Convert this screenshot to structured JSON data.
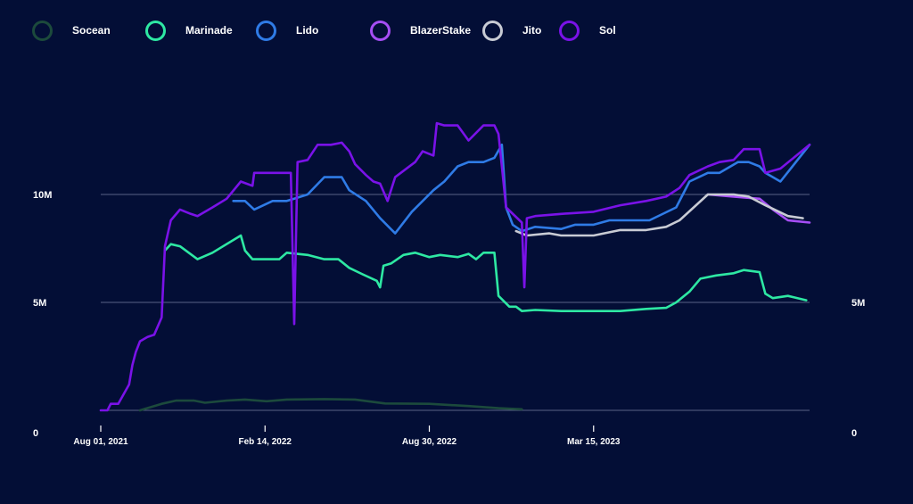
{
  "chart_data": {
    "type": "line",
    "title": "",
    "xlabel": "",
    "ylabel": "",
    "ylim": [
      0,
      14000000
    ],
    "y_ticks": [
      {
        "value": 0,
        "label": "0"
      },
      {
        "value": 5000000,
        "label": "5M"
      },
      {
        "value": 10000000,
        "label": "10M"
      }
    ],
    "y_right_ticks": [
      {
        "value": 0,
        "label": "0"
      },
      {
        "value": 5000000,
        "label": "5M"
      }
    ],
    "x_ticks": [
      {
        "value": "2021-08-01",
        "label": "Aug 01, 2021"
      },
      {
        "value": "2022-02-14",
        "label": "Feb 14, 2022"
      },
      {
        "value": "2022-08-30",
        "label": "Aug 30, 2022"
      },
      {
        "value": "2023-03-15",
        "label": "Mar 15, 2023"
      }
    ],
    "xlim": [
      "2021-08-01",
      "2023-11-29"
    ],
    "gridlines": [
      5000000,
      10000000
    ],
    "legend_position": "top",
    "series": [
      {
        "name": "Socean",
        "color": "#1c4a3c",
        "points": [
          [
            "2021-09-17",
            0
          ],
          [
            "2021-10-13",
            300000
          ],
          [
            "2021-10-30",
            450000
          ],
          [
            "2021-11-21",
            450000
          ],
          [
            "2021-12-04",
            350000
          ],
          [
            "2021-12-30",
            450000
          ],
          [
            "2022-01-21",
            500000
          ],
          [
            "2022-02-16",
            420000
          ],
          [
            "2022-03-12",
            500000
          ],
          [
            "2022-04-26",
            520000
          ],
          [
            "2022-06-02",
            500000
          ],
          [
            "2022-07-08",
            320000
          ],
          [
            "2022-08-30",
            300000
          ],
          [
            "2022-10-16",
            200000
          ],
          [
            "2022-11-21",
            100000
          ],
          [
            "2022-12-19",
            50000
          ]
        ]
      },
      {
        "name": "Marinade",
        "color": "#2ee8a3",
        "points": [
          [
            "2021-10-17",
            7400000
          ],
          [
            "2021-10-24",
            7700000
          ],
          [
            "2021-11-04",
            7600000
          ],
          [
            "2021-11-25",
            7000000
          ],
          [
            "2021-12-13",
            7300000
          ],
          [
            "2022-01-16",
            8100000
          ],
          [
            "2022-01-21",
            7400000
          ],
          [
            "2022-01-30",
            7000000
          ],
          [
            "2022-02-23",
            7000000
          ],
          [
            "2022-03-03",
            7000000
          ],
          [
            "2022-03-12",
            7300000
          ],
          [
            "2022-04-06",
            7200000
          ],
          [
            "2022-04-26",
            7000000
          ],
          [
            "2022-05-13",
            7000000
          ],
          [
            "2022-05-26",
            6600000
          ],
          [
            "2022-06-11",
            6300000
          ],
          [
            "2022-06-28",
            6000000
          ],
          [
            "2022-07-02",
            5700000
          ],
          [
            "2022-07-06",
            6700000
          ],
          [
            "2022-07-15",
            6800000
          ],
          [
            "2022-07-30",
            7200000
          ],
          [
            "2022-08-13",
            7300000
          ],
          [
            "2022-08-30",
            7100000
          ],
          [
            "2022-09-12",
            7200000
          ],
          [
            "2022-10-03",
            7100000
          ],
          [
            "2022-10-16",
            7250000
          ],
          [
            "2022-10-25",
            7000000
          ],
          [
            "2022-11-03",
            7300000
          ],
          [
            "2022-11-16",
            7300000
          ],
          [
            "2022-11-21",
            5300000
          ],
          [
            "2022-12-04",
            4800000
          ],
          [
            "2022-12-12",
            4800000
          ],
          [
            "2022-12-19",
            4600000
          ],
          [
            "2023-01-04",
            4650000
          ],
          [
            "2023-02-04",
            4600000
          ],
          [
            "2023-03-15",
            4600000
          ],
          [
            "2023-04-16",
            4600000
          ],
          [
            "2023-05-17",
            4700000
          ],
          [
            "2023-06-10",
            4750000
          ],
          [
            "2023-06-22",
            5000000
          ],
          [
            "2023-07-08",
            5500000
          ],
          [
            "2023-07-21",
            6100000
          ],
          [
            "2023-08-09",
            6250000
          ],
          [
            "2023-08-30",
            6350000
          ],
          [
            "2023-09-11",
            6500000
          ],
          [
            "2023-09-30",
            6400000
          ],
          [
            "2023-10-07",
            5400000
          ],
          [
            "2023-10-16",
            5200000
          ],
          [
            "2023-11-03",
            5300000
          ],
          [
            "2023-11-25",
            5100000
          ]
        ]
      },
      {
        "name": "Lido",
        "color": "#2f7be6",
        "points": [
          [
            "2022-01-07",
            9700000
          ],
          [
            "2022-01-21",
            9700000
          ],
          [
            "2022-02-01",
            9300000
          ],
          [
            "2022-02-23",
            9700000
          ],
          [
            "2022-03-12",
            9700000
          ],
          [
            "2022-03-21",
            9800000
          ],
          [
            "2022-04-06",
            10000000
          ],
          [
            "2022-04-26",
            10800000
          ],
          [
            "2022-05-17",
            10800000
          ],
          [
            "2022-05-26",
            10200000
          ],
          [
            "2022-06-15",
            9700000
          ],
          [
            "2022-07-02",
            8900000
          ],
          [
            "2022-07-20",
            8200000
          ],
          [
            "2022-08-09",
            9200000
          ],
          [
            "2022-09-04",
            10200000
          ],
          [
            "2022-09-17",
            10600000
          ],
          [
            "2022-10-03",
            11300000
          ],
          [
            "2022-10-16",
            11500000
          ],
          [
            "2022-11-03",
            11500000
          ],
          [
            "2022-11-16",
            11700000
          ],
          [
            "2022-11-25",
            12300000
          ],
          [
            "2022-11-30",
            9400000
          ],
          [
            "2022-12-08",
            8600000
          ],
          [
            "2022-12-19",
            8300000
          ],
          [
            "2023-01-04",
            8500000
          ],
          [
            "2023-02-04",
            8400000
          ],
          [
            "2023-02-21",
            8600000
          ],
          [
            "2023-03-15",
            8600000
          ],
          [
            "2023-04-03",
            8800000
          ],
          [
            "2023-05-04",
            8800000
          ],
          [
            "2023-05-21",
            8800000
          ],
          [
            "2023-06-22",
            9400000
          ],
          [
            "2023-07-08",
            10600000
          ],
          [
            "2023-07-30",
            11000000
          ],
          [
            "2023-08-13",
            11000000
          ],
          [
            "2023-09-04",
            11500000
          ],
          [
            "2023-09-17",
            11500000
          ],
          [
            "2023-09-30",
            11300000
          ],
          [
            "2023-10-07",
            11000000
          ],
          [
            "2023-10-25",
            10600000
          ],
          [
            "2023-11-29",
            12300000
          ]
        ]
      },
      {
        "name": "BlazerStake",
        "color": "#a64ef5",
        "points": [
          [
            "2023-07-30",
            10000000
          ],
          [
            "2023-08-30",
            9900000
          ],
          [
            "2023-09-30",
            9800000
          ],
          [
            "2023-10-16",
            9300000
          ],
          [
            "2023-11-03",
            8800000
          ],
          [
            "2023-11-29",
            8700000
          ]
        ]
      },
      {
        "name": "Jito",
        "color": "#c8cbd4",
        "points": [
          [
            "2022-12-12",
            8300000
          ],
          [
            "2022-12-25",
            8100000
          ],
          [
            "2023-01-21",
            8200000
          ],
          [
            "2023-02-04",
            8100000
          ],
          [
            "2023-03-15",
            8100000
          ],
          [
            "2023-04-16",
            8350000
          ],
          [
            "2023-05-17",
            8350000
          ],
          [
            "2023-06-10",
            8500000
          ],
          [
            "2023-06-26",
            8800000
          ],
          [
            "2023-07-30",
            10000000
          ],
          [
            "2023-08-30",
            10000000
          ],
          [
            "2023-09-17",
            9900000
          ],
          [
            "2023-10-07",
            9500000
          ],
          [
            "2023-11-03",
            9000000
          ],
          [
            "2023-11-21",
            8900000
          ]
        ]
      },
      {
        "name": "Sol",
        "color": "#7a12e8",
        "points": [
          [
            "2021-08-01",
            0
          ],
          [
            "2021-08-09",
            0
          ],
          [
            "2021-08-13",
            300000
          ],
          [
            "2021-08-22",
            300000
          ],
          [
            "2021-09-04",
            1200000
          ],
          [
            "2021-09-08",
            2100000
          ],
          [
            "2021-09-12",
            2700000
          ],
          [
            "2021-09-17",
            3200000
          ],
          [
            "2021-09-26",
            3400000
          ],
          [
            "2021-10-04",
            3500000
          ],
          [
            "2021-10-13",
            4300000
          ],
          [
            "2021-10-17",
            7600000
          ],
          [
            "2021-10-24",
            8800000
          ],
          [
            "2021-11-04",
            9300000
          ],
          [
            "2021-11-17",
            9100000
          ],
          [
            "2021-11-25",
            9000000
          ],
          [
            "2021-12-13",
            9400000
          ],
          [
            "2021-12-30",
            9800000
          ],
          [
            "2022-01-16",
            10600000
          ],
          [
            "2022-01-30",
            10400000
          ],
          [
            "2022-02-01",
            11000000
          ],
          [
            "2022-02-23",
            11000000
          ],
          [
            "2022-03-12",
            11000000
          ],
          [
            "2022-03-17",
            11000000
          ],
          [
            "2022-03-21",
            4000000
          ],
          [
            "2022-03-25",
            11500000
          ],
          [
            "2022-04-06",
            11600000
          ],
          [
            "2022-04-18",
            12300000
          ],
          [
            "2022-05-04",
            12300000
          ],
          [
            "2022-05-17",
            12400000
          ],
          [
            "2022-05-26",
            12000000
          ],
          [
            "2022-06-02",
            11400000
          ],
          [
            "2022-06-15",
            10900000
          ],
          [
            "2022-06-24",
            10600000
          ],
          [
            "2022-07-02",
            10500000
          ],
          [
            "2022-07-11",
            9700000
          ],
          [
            "2022-07-20",
            10800000
          ],
          [
            "2022-08-13",
            11500000
          ],
          [
            "2022-08-22",
            12000000
          ],
          [
            "2022-09-04",
            11800000
          ],
          [
            "2022-09-08",
            13300000
          ],
          [
            "2022-09-17",
            13200000
          ],
          [
            "2022-10-03",
            13200000
          ],
          [
            "2022-10-16",
            12500000
          ],
          [
            "2022-11-03",
            13200000
          ],
          [
            "2022-11-16",
            13200000
          ],
          [
            "2022-11-21",
            12800000
          ],
          [
            "2022-11-30",
            9400000
          ],
          [
            "2022-12-19",
            8700000
          ],
          [
            "2022-12-22",
            5700000
          ],
          [
            "2022-12-25",
            8900000
          ],
          [
            "2023-01-04",
            9000000
          ],
          [
            "2023-02-04",
            9100000
          ],
          [
            "2023-03-15",
            9200000
          ],
          [
            "2023-04-16",
            9500000
          ],
          [
            "2023-05-17",
            9700000
          ],
          [
            "2023-06-10",
            9900000
          ],
          [
            "2023-06-26",
            10300000
          ],
          [
            "2023-07-08",
            10900000
          ],
          [
            "2023-07-30",
            11300000
          ],
          [
            "2023-08-13",
            11500000
          ],
          [
            "2023-08-30",
            11600000
          ],
          [
            "2023-09-11",
            12100000
          ],
          [
            "2023-09-30",
            12100000
          ],
          [
            "2023-10-07",
            11000000
          ],
          [
            "2023-10-25",
            11200000
          ],
          [
            "2023-11-29",
            12300000
          ]
        ]
      }
    ]
  }
}
